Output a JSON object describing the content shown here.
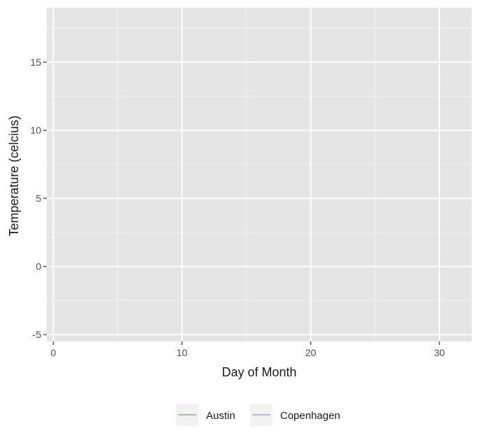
{
  "chart_data": {
    "type": "line",
    "xlabel": "Day of Month",
    "ylabel": "Temperature (celcius)",
    "xlim": [
      -0.5,
      32.5
    ],
    "ylim": [
      -5.5,
      19
    ],
    "x_ticks": [
      0,
      10,
      20,
      30
    ],
    "x_minor_ticks": [
      5,
      15,
      25
    ],
    "y_ticks": [
      -5,
      0,
      5,
      10,
      15
    ],
    "y_minor_ticks": [
      -2.5,
      2.5,
      7.5,
      12.5,
      17.5
    ],
    "grid": true,
    "legend_position": "bottom",
    "panel_color": "#e5e5e5",
    "series": [
      {
        "name": "Austin",
        "color": "#6dc25f",
        "x": [],
        "y": []
      },
      {
        "name": "Copenhagen",
        "color": "#b39ddb",
        "x": [],
        "y": []
      }
    ]
  }
}
